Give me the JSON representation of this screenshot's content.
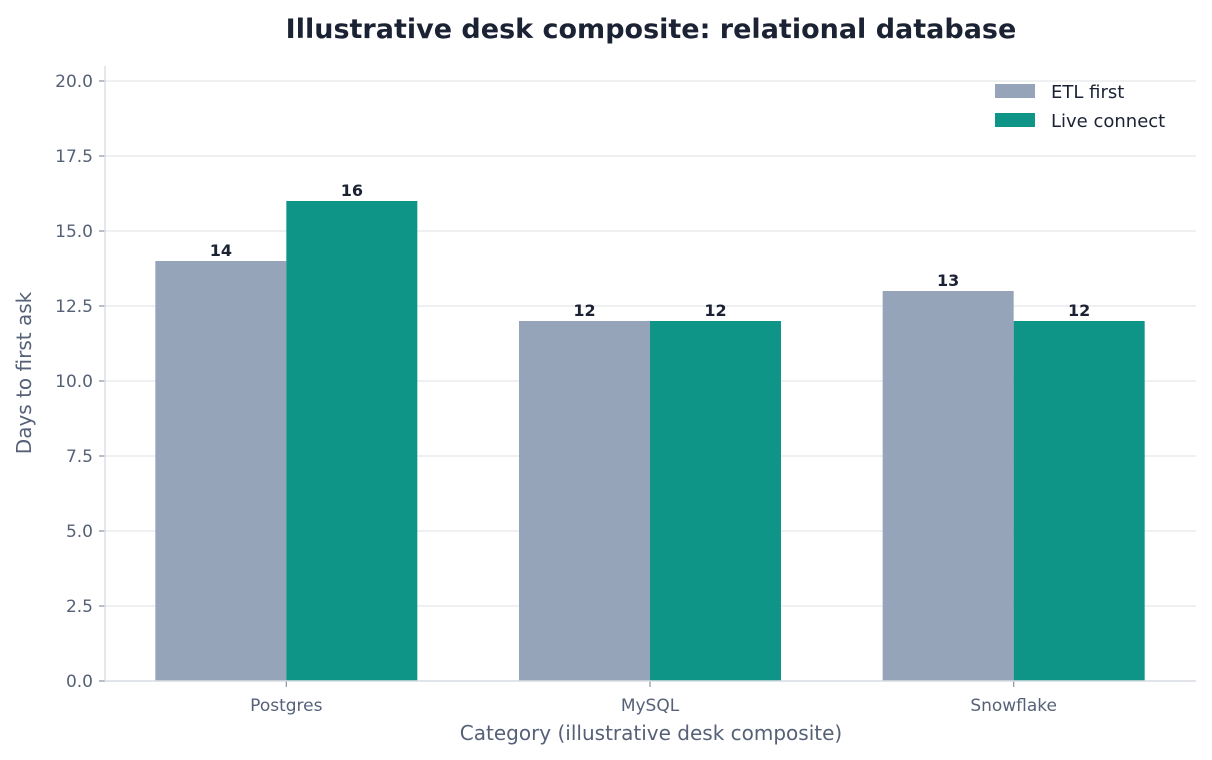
{
  "chart_data": {
    "type": "bar",
    "title": "Illustrative desk composite: relational database",
    "xlabel": "Category (illustrative desk composite)",
    "ylabel": "Days to first ask",
    "categories": [
      "Postgres",
      "MySQL",
      "Snowflake"
    ],
    "series": [
      {
        "name": "ETL first",
        "values": [
          14,
          12,
          13
        ],
        "color": "#96a4ba"
      },
      {
        "name": "Live connect",
        "values": [
          16,
          12,
          12
        ],
        "color": "#0e9588"
      }
    ],
    "ylim": [
      0,
      20.5
    ],
    "yticks": [
      "0.0",
      "2.5",
      "5.0",
      "7.5",
      "10.0",
      "12.5",
      "15.0",
      "17.5",
      "20.0"
    ],
    "grid": true,
    "legend_position": "top-right"
  }
}
